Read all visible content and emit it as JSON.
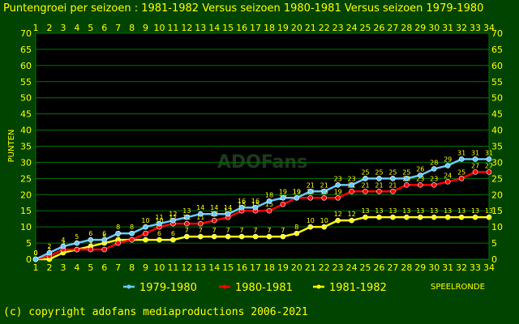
{
  "chart_data": {
    "type": "line",
    "title": "Puntengroei per seizoen : 1981-1982 Versus seizoen 1980-1981 Versus seizoen 1979-1980",
    "xlabel": "SPEELRONDE",
    "ylabel": "PUNTEN",
    "x": [
      1,
      2,
      3,
      4,
      5,
      6,
      7,
      8,
      9,
      10,
      11,
      12,
      13,
      14,
      15,
      16,
      17,
      18,
      19,
      20,
      21,
      22,
      23,
      24,
      25,
      26,
      27,
      28,
      29,
      30,
      31,
      32,
      33,
      34
    ],
    "xlim": [
      1,
      34
    ],
    "ylim": [
      0,
      70
    ],
    "yticks": [
      0,
      5,
      10,
      15,
      20,
      25,
      30,
      35,
      40,
      45,
      50,
      55,
      60,
      65,
      70
    ],
    "grid": true,
    "legend_position": "bottom",
    "watermark": "ADOFans",
    "series": [
      {
        "name": "1979-1980",
        "color": "#66ccff",
        "label_color": "#ffff00",
        "values": [
          0,
          2,
          4,
          5,
          6,
          6,
          8,
          8,
          10,
          11,
          12,
          13,
          14,
          14,
          14,
          16,
          16,
          18,
          19,
          19,
          21,
          21,
          23,
          23,
          25,
          25,
          25,
          25,
          26,
          28,
          29,
          31,
          31,
          31
        ]
      },
      {
        "name": "1980-1981",
        "color": "#ff0000",
        "label_color": "#ffff00",
        "values": [
          0,
          1,
          3,
          3,
          3,
          3,
          5,
          6,
          8,
          10,
          11,
          11,
          11,
          12,
          13,
          15,
          15,
          15,
          17,
          19,
          19,
          19,
          19,
          21,
          21,
          21,
          21,
          23,
          23,
          23,
          24,
          25,
          27,
          27
        ]
      },
      {
        "name": "1981-1982",
        "color": "#ffff00",
        "label_color": "#ffff00",
        "values": [
          0,
          0,
          2,
          3,
          4,
          5,
          6,
          6,
          6,
          6,
          6,
          7,
          7,
          7,
          7,
          7,
          7,
          7,
          7,
          8,
          10,
          10,
          12,
          12,
          13,
          13,
          13,
          13,
          13,
          13,
          13,
          13,
          13,
          13
        ]
      }
    ]
  },
  "footer": {
    "copyright": "(c) copyright adofans mediaproductions 2006-2021"
  }
}
